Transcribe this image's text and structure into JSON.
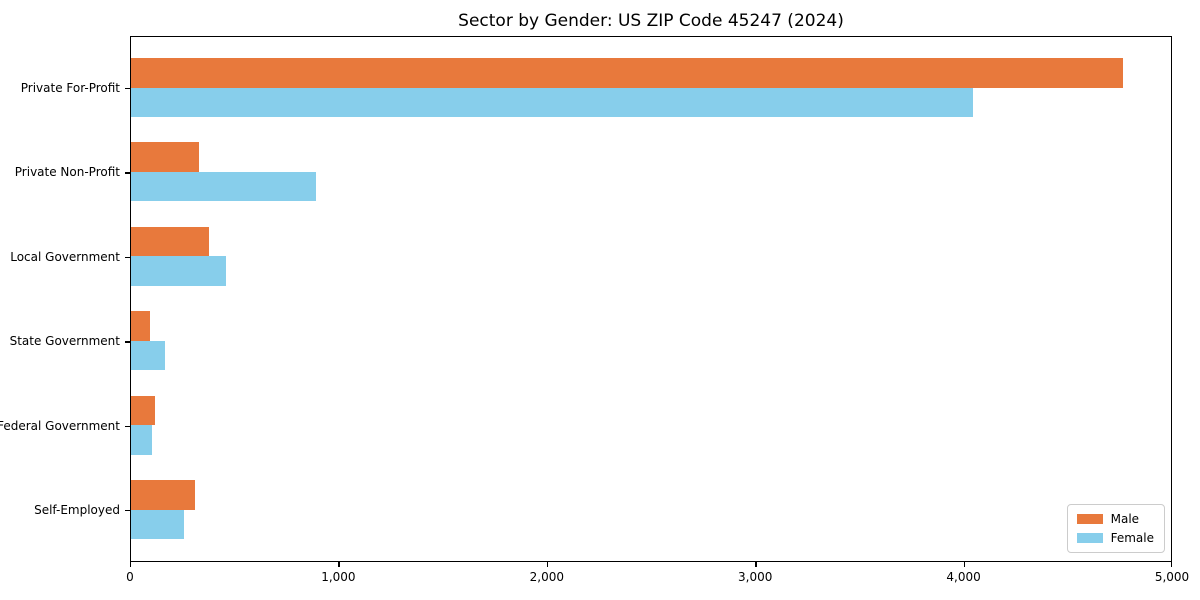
{
  "chart_data": {
    "type": "bar",
    "orientation": "horizontal",
    "title": "Sector by Gender: US ZIP Code 45247 (2024)",
    "categories": [
      "Private For-Profit",
      "Private Non-Profit",
      "Local Government",
      "State Government",
      "Federal Government",
      "Self-Employed"
    ],
    "series": [
      {
        "name": "Male",
        "color": "#e8793c",
        "values": [
          4770,
          325,
          375,
          90,
          115,
          310
        ]
      },
      {
        "name": "Female",
        "color": "#87ceeb",
        "values": [
          4050,
          890,
          455,
          165,
          100,
          255
        ]
      }
    ],
    "xlabel": "",
    "ylabel": "",
    "xlim": [
      0,
      5000
    ],
    "x_tick_values": [
      0,
      1000,
      2000,
      3000,
      4000,
      5000
    ],
    "x_tick_labels": [
      "0",
      "1,000",
      "2,000",
      "3,000",
      "4,000",
      "5,000"
    ],
    "grid": false,
    "legend_position": "lower right"
  }
}
